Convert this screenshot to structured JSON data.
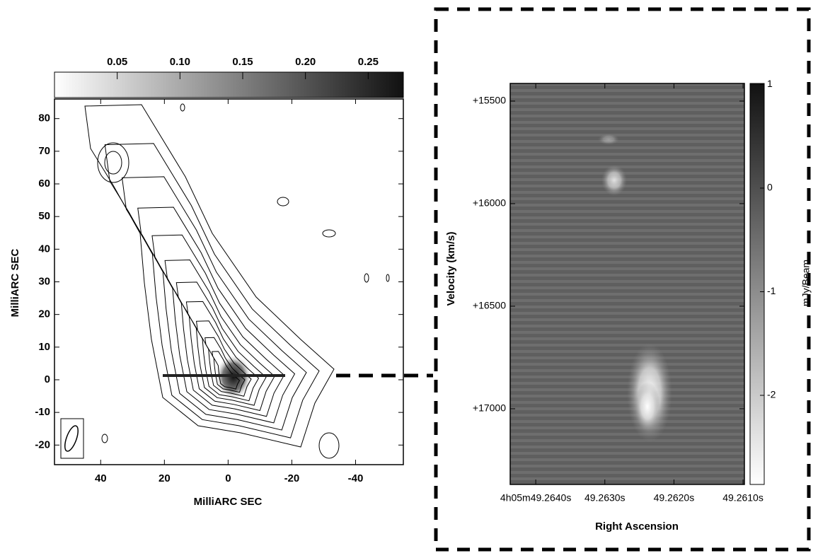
{
  "chart_data": [
    {
      "type": "contour",
      "xlabel": "MilliARC SEC",
      "ylabel": "MilliARC SEC",
      "xlim": [
        54.5,
        -55
      ],
      "ylim": [
        -26,
        86
      ],
      "xticks": [
        40,
        20,
        0,
        -20,
        -40
      ],
      "yticks": [
        80,
        70,
        60,
        50,
        40,
        30,
        20,
        10,
        0,
        -10,
        -20
      ],
      "colorbar": {
        "clim": [
          0,
          0.278
        ],
        "ticks": [
          0.05,
          {
            "value": 0.1,
            "label": "0.10"
          },
          0.15,
          {
            "value": 0.2,
            "label": "0.20"
          },
          0.25
        ]
      }
    },
    {
      "type": "image",
      "xlabel": "Right Ascension",
      "ylabel": "Velocity (km/s)",
      "xlim": [
        49.26437,
        49.26098
      ],
      "ylim": [
        17369,
        15414
      ],
      "xticks": [
        {
          "value": 49.264,
          "label": "4h05m49.2640s"
        },
        {
          "value": 49.263,
          "label": "49.2630s"
        },
        {
          "value": 49.262,
          "label": "49.2620s"
        },
        {
          "value": 49.261,
          "label": "49.2610s"
        }
      ],
      "yticks": [
        {
          "value": 15500,
          "label": "+15500"
        },
        {
          "value": 16000,
          "label": "+16000"
        },
        {
          "value": 16500,
          "label": "+16500"
        },
        {
          "value": 17000,
          "label": "+17000"
        }
      ],
      "colorbar": {
        "clim": [
          -2.86,
          1.01
        ],
        "ticks": [
          1,
          0,
          -1,
          -2
        ],
        "label": "mJy/Beam"
      }
    }
  ]
}
